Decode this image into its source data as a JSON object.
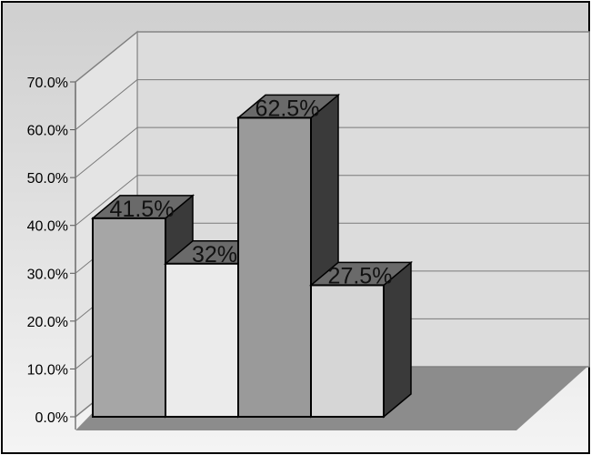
{
  "chart_data": {
    "type": "bar",
    "style": "3d",
    "title": "",
    "xlabel": "",
    "ylabel": "",
    "ylim": [
      0,
      70
    ],
    "y_ticks": [
      {
        "value": 0,
        "label": "0.0%"
      },
      {
        "value": 10,
        "label": "10.0%"
      },
      {
        "value": 20,
        "label": "20.0%"
      },
      {
        "value": 30,
        "label": "30.0%"
      },
      {
        "value": 40,
        "label": "40.0%"
      },
      {
        "value": 50,
        "label": "50.0%"
      },
      {
        "value": 60,
        "label": "60.0%"
      },
      {
        "value": 70,
        "label": "70.0%"
      }
    ],
    "grid": true,
    "legend": "none",
    "bars": [
      {
        "value": 41.5,
        "label": "41.5%",
        "fill": "#a6a6a6"
      },
      {
        "value": 32,
        "label": "32%",
        "fill": "#ebebeb"
      },
      {
        "value": 62.5,
        "label": "62.5%",
        "fill": "#9a9a9a"
      },
      {
        "value": 27.5,
        "label": "27.5%",
        "fill": "#d6d6d6"
      }
    ],
    "colors": {
      "wall": "#dcdcdc",
      "floor": "#8c8c8c",
      "gridline": "#7a7a7a",
      "bar_top": "#6a6a6a",
      "bar_side": "#3a3a3a",
      "shadow": "#5e5e5e"
    }
  }
}
